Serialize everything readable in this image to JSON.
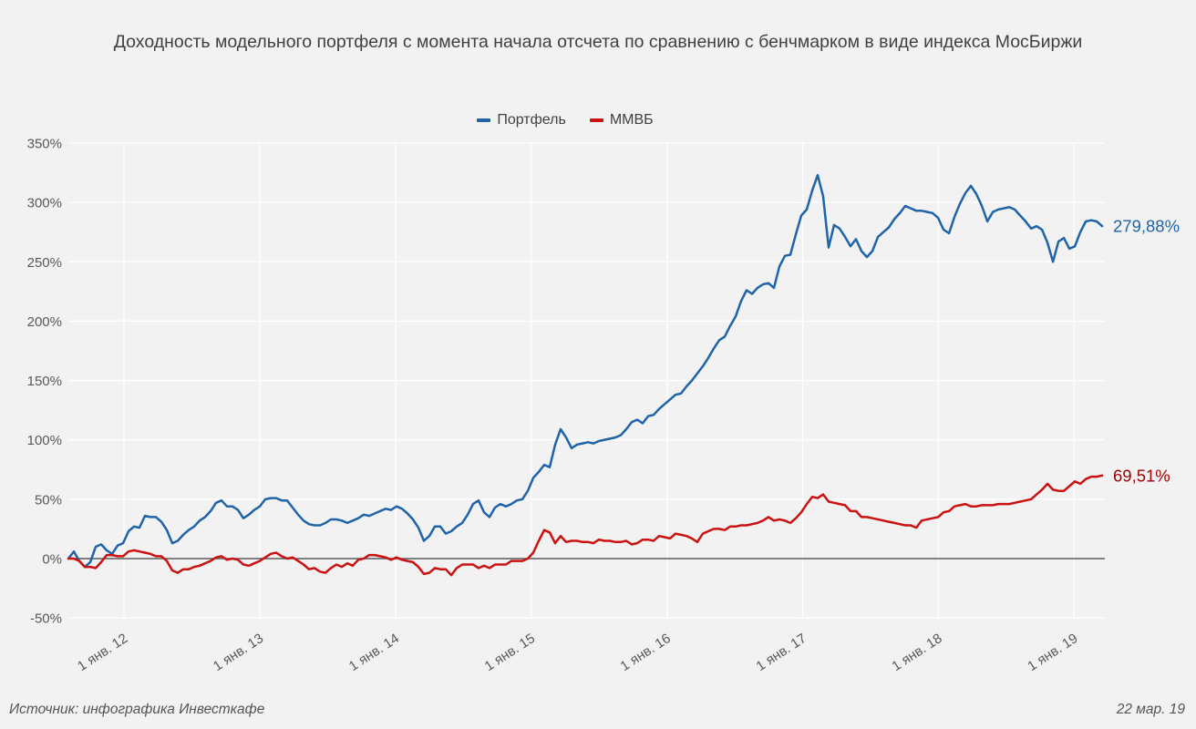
{
  "page": {
    "background": "#f2f2f2"
  },
  "header": {
    "title": "Доходность модельного портфеля с момента начала отсчета по сравнению с бенчмарком в виде индекса МосБиржи"
  },
  "legend": [
    {
      "label": "Портфель",
      "color": "#1f64a8"
    },
    {
      "label": "ММВБ",
      "color": "#cc1111"
    }
  ],
  "footer": {
    "source": "Источник: инфографика Инвесткафе",
    "date": "22 мар. 19"
  },
  "chart_data": {
    "type": "line",
    "title": "Доходность модельного портфеля с момента начала отсчета по сравнению с бенчмарком в виде индекса МосБиржи",
    "grid": true,
    "grid_color": "#ffffff",
    "zero_line_color": "#595959",
    "axis_text_color": "#595959",
    "legend_position": "top-center",
    "x_axis": {
      "ticks": [
        {
          "year": 2012,
          "label": "1 янв. 12"
        },
        {
          "year": 2013,
          "label": "1 янв. 13"
        },
        {
          "year": 2014,
          "label": "1 янв. 14"
        },
        {
          "year": 2015,
          "label": "1 янв. 15"
        },
        {
          "year": 2016,
          "label": "1 янв. 16"
        },
        {
          "year": 2017,
          "label": "1 янв. 17"
        },
        {
          "year": 2018,
          "label": "1 янв. 18"
        },
        {
          "year": 2019,
          "label": "1 янв. 19"
        }
      ]
    },
    "y_axis": {
      "unit": "%",
      "range": [
        -50,
        350
      ],
      "ticks": [
        350,
        300,
        250,
        200,
        150,
        100,
        50,
        0,
        -50
      ]
    },
    "t0": 2011.59,
    "dt_years": 0.0403,
    "series": [
      {
        "name": "Портфель",
        "color": "#1f64a8",
        "label_color": "#1f64a8",
        "end_label": "279,88%",
        "final_value": 279.88,
        "values": [
          0,
          6,
          -2,
          -7,
          -3,
          10,
          12,
          7,
          4,
          11,
          13,
          23,
          27,
          26,
          36,
          35,
          35,
          31,
          24,
          13,
          15,
          20,
          24,
          27,
          32,
          35,
          40,
          47,
          49,
          44,
          44,
          41,
          34,
          37,
          41,
          44,
          50,
          51,
          51,
          49,
          49,
          43,
          37,
          32,
          29,
          28,
          28,
          30,
          33,
          33,
          32,
          30,
          32,
          34,
          37,
          36,
          38,
          40,
          42,
          41,
          44,
          42,
          38,
          33,
          26,
          15,
          19,
          27,
          27,
          21,
          23,
          27,
          30,
          37,
          46,
          49,
          39,
          35,
          43,
          46,
          44,
          46,
          49,
          50,
          57,
          68,
          73,
          79,
          77,
          96,
          109,
          102,
          93,
          96,
          97,
          98,
          97,
          99,
          100,
          101,
          102,
          104,
          109,
          115,
          117,
          114,
          120,
          121,
          126,
          130,
          134,
          138,
          139,
          145,
          150,
          156,
          162,
          169,
          177,
          184,
          187,
          196,
          204,
          217,
          226,
          223,
          228,
          231,
          232,
          228,
          246,
          255,
          256,
          273,
          289,
          294,
          310,
          323,
          305,
          262,
          281,
          278,
          271,
          263,
          269,
          259,
          254,
          259,
          271,
          275,
          279,
          286,
          291,
          297,
          295,
          293,
          293,
          292,
          291,
          287,
          277,
          274,
          288,
          299,
          308,
          314,
          307,
          297,
          284,
          292,
          294,
          295,
          296,
          294,
          289,
          284,
          278,
          280,
          277,
          266,
          250,
          267,
          270,
          261,
          263,
          275,
          284,
          285,
          284,
          280
        ]
      },
      {
        "name": "ММВБ",
        "color": "#cc1111",
        "label_color": "#9c0000",
        "end_label": "69,51%",
        "final_value": 69.51,
        "values": [
          0,
          0,
          -2,
          -7,
          -7,
          -8,
          -3,
          3,
          3,
          2,
          2,
          6,
          7,
          6,
          5,
          4,
          2,
          2,
          -2,
          -10,
          -12,
          -9,
          -9,
          -7,
          -6,
          -4,
          -2,
          1,
          2,
          -1,
          0,
          -1,
          -5,
          -6,
          -4,
          -2,
          1,
          4,
          5,
          2,
          0,
          1,
          -2,
          -5,
          -9,
          -8,
          -11,
          -12,
          -8,
          -5,
          -7,
          -4,
          -6,
          -1,
          0,
          3,
          3,
          2,
          1,
          -1,
          1,
          -1,
          -2,
          -3,
          -7,
          -13,
          -12,
          -8,
          -9,
          -9,
          -14,
          -8,
          -5,
          -5,
          -5,
          -8,
          -6,
          -8,
          -5,
          -5,
          -5,
          -2,
          -2,
          -2,
          0,
          5,
          15,
          24,
          22,
          13,
          19,
          14,
          15,
          15,
          14,
          14,
          13,
          16,
          15,
          15,
          14,
          14,
          15,
          12,
          13,
          16,
          16,
          15,
          19,
          18,
          17,
          21,
          20,
          19,
          17,
          14,
          21,
          23,
          25,
          25,
          24,
          27,
          27,
          28,
          28,
          29,
          30,
          32,
          35,
          32,
          33,
          32,
          30,
          34,
          39,
          46,
          52,
          51,
          54,
          48,
          47,
          46,
          45,
          40,
          40,
          35,
          35,
          34,
          33,
          32,
          31,
          30,
          29,
          28,
          28,
          26,
          32,
          33,
          34,
          35,
          39,
          40,
          44,
          45,
          46,
          44,
          44,
          45,
          45,
          45,
          46,
          46,
          46,
          47,
          48,
          49,
          50,
          54,
          58,
          63,
          58,
          57,
          57,
          61,
          65,
          63,
          67,
          69,
          69,
          70
        ]
      }
    ]
  }
}
